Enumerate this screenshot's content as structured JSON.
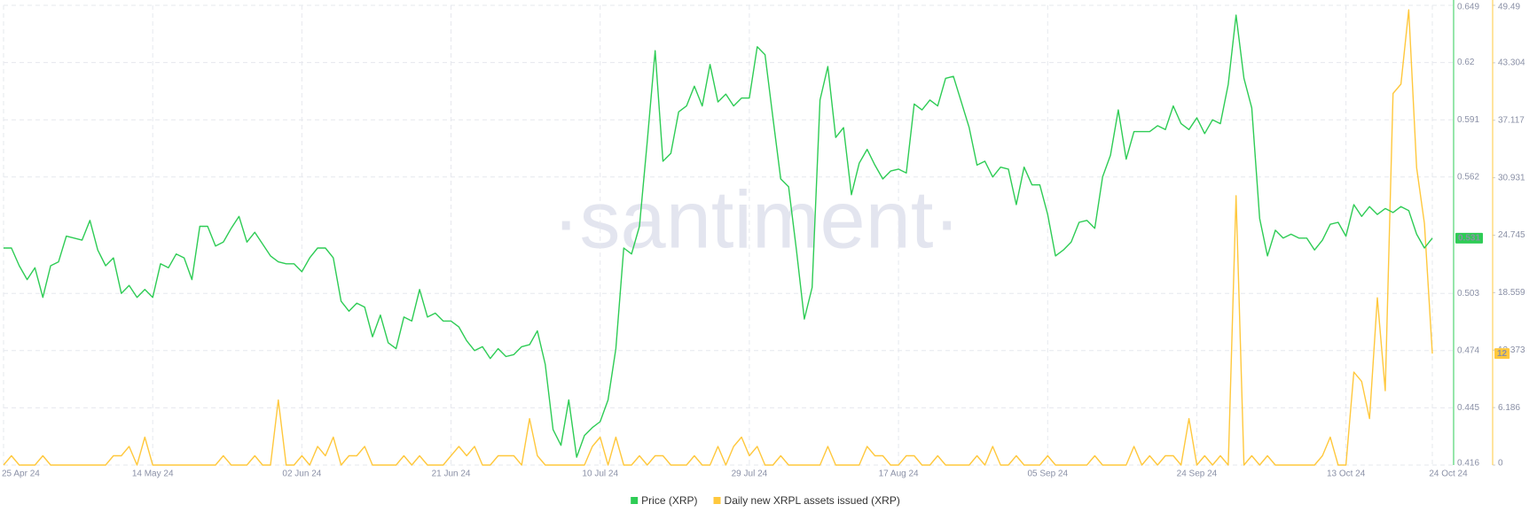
{
  "chart_data": {
    "type": "line",
    "watermark": "·santiment·",
    "categories": [
      "25 Apr 24",
      null,
      null,
      null,
      null,
      null,
      null,
      null,
      null,
      null,
      null,
      null,
      null,
      null,
      null,
      null,
      null,
      null,
      null,
      "14 May 24",
      null,
      null,
      null,
      null,
      null,
      null,
      null,
      null,
      null,
      null,
      null,
      null,
      null,
      null,
      null,
      null,
      null,
      null,
      "02 Jun 24",
      null,
      null,
      null,
      null,
      null,
      null,
      null,
      null,
      null,
      null,
      null,
      null,
      null,
      null,
      null,
      null,
      null,
      null,
      "21 Jun 24",
      null,
      null,
      null,
      null,
      null,
      null,
      null,
      null,
      null,
      null,
      null,
      null,
      null,
      null,
      null,
      null,
      null,
      null,
      "10 Jul 24",
      null,
      null,
      null,
      null,
      null,
      null,
      null,
      null,
      null,
      null,
      null,
      null,
      null,
      null,
      null,
      null,
      null,
      null,
      "29 Jul 24",
      null,
      null,
      null,
      null,
      null,
      null,
      null,
      null,
      null,
      null,
      null,
      null,
      null,
      null,
      null,
      null,
      null,
      null,
      "17 Aug 24",
      null,
      null,
      null,
      null,
      null,
      null,
      null,
      null,
      null,
      null,
      null,
      null,
      null,
      null,
      null,
      null,
      null,
      null,
      "05 Sep 24",
      null,
      null,
      null,
      null,
      null,
      null,
      null,
      null,
      null,
      null,
      null,
      null,
      null,
      null,
      null,
      null,
      null,
      null,
      "24 Sep 24",
      null,
      null,
      null,
      null,
      null,
      null,
      null,
      null,
      null,
      null,
      null,
      null,
      null,
      null,
      null,
      null,
      null,
      null,
      "13 Oct 24",
      null,
      null,
      null,
      null,
      null,
      null,
      null,
      null,
      null,
      null,
      "24 Oct 24"
    ],
    "series": [
      {
        "name": "Price (XRP)",
        "color": "#2ecc55",
        "axis": "y",
        "values": [
          0.526,
          0.526,
          0.517,
          0.51,
          0.516,
          0.501,
          0.517,
          0.519,
          0.532,
          0.531,
          0.53,
          0.54,
          0.525,
          0.517,
          0.521,
          0.503,
          0.507,
          0.501,
          0.505,
          0.501,
          0.518,
          0.516,
          0.523,
          0.521,
          0.51,
          0.537,
          0.537,
          0.527,
          0.529,
          0.536,
          0.542,
          0.529,
          0.534,
          0.528,
          0.522,
          0.519,
          0.518,
          0.518,
          0.514,
          0.521,
          0.526,
          0.526,
          0.521,
          0.499,
          0.494,
          0.498,
          0.496,
          0.481,
          0.492,
          0.478,
          0.475,
          0.491,
          0.489,
          0.505,
          0.491,
          0.493,
          0.489,
          0.489,
          0.486,
          0.479,
          0.474,
          0.476,
          0.47,
          0.475,
          0.471,
          0.472,
          0.476,
          0.477,
          0.484,
          0.467,
          0.434,
          0.426,
          0.449,
          0.42,
          0.431,
          0.435,
          0.438,
          0.449,
          0.475,
          0.526,
          0.523,
          0.537,
          0.58,
          0.626,
          0.57,
          0.574,
          0.595,
          0.598,
          0.608,
          0.598,
          0.619,
          0.6,
          0.604,
          0.598,
          0.602,
          0.602,
          0.628,
          0.624,
          0.592,
          0.561,
          0.557,
          0.525,
          0.49,
          0.506,
          0.601,
          0.618,
          0.582,
          0.587,
          0.553,
          0.569,
          0.576,
          0.568,
          0.561,
          0.565,
          0.566,
          0.564,
          0.599,
          0.596,
          0.601,
          0.598,
          0.612,
          0.613,
          0.6,
          0.587,
          0.568,
          0.57,
          0.562,
          0.567,
          0.566,
          0.548,
          0.567,
          0.558,
          0.558,
          0.543,
          0.522,
          0.525,
          0.529,
          0.539,
          0.54,
          0.536,
          0.562,
          0.573,
          0.596,
          0.571,
          0.585,
          0.585,
          0.585,
          0.588,
          0.586,
          0.598,
          0.589,
          0.586,
          0.592,
          0.584,
          0.591,
          0.589,
          0.609,
          0.644,
          0.612,
          0.597,
          0.541,
          0.522,
          0.535,
          0.531,
          0.533,
          0.531,
          0.531,
          0.525,
          0.53,
          0.538,
          0.539,
          0.532,
          0.548,
          0.542,
          0.547,
          0.543,
          0.546,
          0.544,
          0.547,
          0.545,
          0.533,
          0.526,
          0.531
        ]
      },
      {
        "name": "Daily new XRPL assets issued (XRP)",
        "color": "#ffc83d",
        "axis": "y2",
        "values": [
          0,
          1,
          0,
          0,
          0,
          1,
          0,
          0,
          0,
          0,
          0,
          0,
          0,
          0,
          1,
          1,
          2,
          0,
          3,
          0,
          0,
          0,
          0,
          0,
          0,
          0,
          0,
          0,
          1,
          0,
          0,
          0,
          1,
          0,
          0,
          7,
          0,
          0,
          1,
          0,
          2,
          1,
          3,
          0,
          1,
          1,
          2,
          0,
          0,
          0,
          0,
          1,
          0,
          1,
          0,
          0,
          0,
          1,
          2,
          1,
          2,
          0,
          0,
          1,
          1,
          1,
          0,
          5,
          1,
          0,
          0,
          0,
          0,
          0,
          0,
          2,
          3,
          0,
          3,
          0,
          0,
          1,
          0,
          1,
          1,
          0,
          0,
          0,
          1,
          0,
          0,
          2,
          0,
          2,
          3,
          1,
          2,
          0,
          0,
          1,
          0,
          0,
          0,
          0,
          0,
          2,
          0,
          0,
          0,
          0,
          2,
          1,
          1,
          0,
          0,
          1,
          1,
          0,
          0,
          1,
          0,
          0,
          0,
          0,
          1,
          0,
          2,
          0,
          0,
          1,
          0,
          0,
          0,
          1,
          0,
          0,
          0,
          0,
          0,
          1,
          0,
          0,
          0,
          0,
          2,
          0,
          1,
          0,
          1,
          1,
          0,
          5,
          0,
          1,
          0,
          1,
          0,
          29,
          0,
          1,
          0,
          1,
          0,
          0,
          0,
          0,
          0,
          0,
          1,
          3,
          0,
          0,
          10,
          9,
          5,
          18,
          8,
          40,
          41,
          49,
          32,
          26,
          12
        ]
      }
    ],
    "ylim": [
      0.416,
      0.649
    ],
    "yticks": [
      0.416,
      0.445,
      0.474,
      0.503,
      0.562,
      0.591,
      0.62,
      0.649
    ],
    "y2lim": [
      0,
      49.49
    ],
    "y2ticks": [
      0,
      6.186,
      12.373,
      18.559,
      24.745,
      30.931,
      37.117,
      43.304,
      49.49
    ],
    "grid": true
  }
}
